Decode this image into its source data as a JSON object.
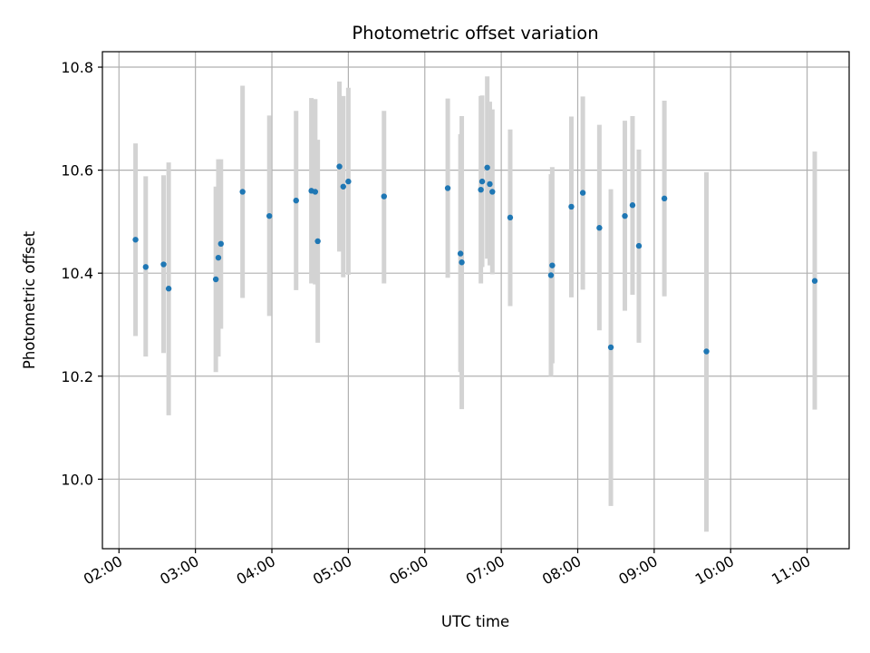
{
  "chart_data": {
    "type": "scatter",
    "title": "Photometric offset variation",
    "xlabel": "UTC time",
    "ylabel": "Photometric offset",
    "x_axis_type": "time",
    "xlim": [
      "01:47",
      "11:33"
    ],
    "ylim": [
      9.865,
      10.83
    ],
    "x_ticks": [
      "02:00",
      "03:00",
      "04:00",
      "05:00",
      "06:00",
      "07:00",
      "08:00",
      "09:00",
      "10:00",
      "11:00"
    ],
    "y_ticks": [
      10.0,
      10.2,
      10.4,
      10.6,
      10.8
    ],
    "y_tick_labels": [
      "10.0",
      "10.2",
      "10.4",
      "10.6",
      "10.8"
    ],
    "grid": true,
    "x_tick_rotation_deg": 30,
    "colors": {
      "point": "#1f77b4",
      "error_bar": "#d3d3d3"
    },
    "points": [
      {
        "t": "02:13",
        "y": 10.465,
        "lo": 10.278,
        "hi": 10.652
      },
      {
        "t": "02:21",
        "y": 10.412,
        "lo": 10.238,
        "hi": 10.588
      },
      {
        "t": "02:35",
        "y": 10.417,
        "lo": 10.245,
        "hi": 10.59
      },
      {
        "t": "02:39",
        "y": 10.37,
        "lo": 10.124,
        "hi": 10.615
      },
      {
        "t": "03:16",
        "y": 10.388,
        "lo": 10.208,
        "hi": 10.568
      },
      {
        "t": "03:18",
        "y": 10.43,
        "lo": 10.238,
        "hi": 10.621
      },
      {
        "t": "03:20",
        "y": 10.457,
        "lo": 10.292,
        "hi": 10.621
      },
      {
        "t": "03:37",
        "y": 10.558,
        "lo": 10.352,
        "hi": 10.764
      },
      {
        "t": "03:58",
        "y": 10.511,
        "lo": 10.317,
        "hi": 10.706
      },
      {
        "t": "04:19",
        "y": 10.541,
        "lo": 10.367,
        "hi": 10.715
      },
      {
        "t": "04:31",
        "y": 10.56,
        "lo": 10.38,
        "hi": 10.74
      },
      {
        "t": "04:34",
        "y": 10.558,
        "lo": 10.378,
        "hi": 10.738
      },
      {
        "t": "04:36",
        "y": 10.462,
        "lo": 10.265,
        "hi": 10.659
      },
      {
        "t": "04:53",
        "y": 10.607,
        "lo": 10.442,
        "hi": 10.772
      },
      {
        "t": "04:56",
        "y": 10.568,
        "lo": 10.392,
        "hi": 10.744
      },
      {
        "t": "05:00",
        "y": 10.578,
        "lo": 10.397,
        "hi": 10.76
      },
      {
        "t": "05:28",
        "y": 10.549,
        "lo": 10.38,
        "hi": 10.715
      },
      {
        "t": "06:18",
        "y": 10.565,
        "lo": 10.391,
        "hi": 10.739
      },
      {
        "t": "06:28",
        "y": 10.438,
        "lo": 10.208,
        "hi": 10.67
      },
      {
        "t": "06:29",
        "y": 10.421,
        "lo": 10.136,
        "hi": 10.705
      },
      {
        "t": "06:44",
        "y": 10.562,
        "lo": 10.38,
        "hi": 10.744
      },
      {
        "t": "06:45",
        "y": 10.578,
        "lo": 10.412,
        "hi": 10.745
      },
      {
        "t": "06:49",
        "y": 10.605,
        "lo": 10.428,
        "hi": 10.782
      },
      {
        "t": "06:51",
        "y": 10.573,
        "lo": 10.415,
        "hi": 10.733
      },
      {
        "t": "06:53",
        "y": 10.558,
        "lo": 10.398,
        "hi": 10.718
      },
      {
        "t": "07:07",
        "y": 10.508,
        "lo": 10.336,
        "hi": 10.679
      },
      {
        "t": "07:39",
        "y": 10.396,
        "lo": 10.2,
        "hi": 10.592
      },
      {
        "t": "07:40",
        "y": 10.415,
        "lo": 10.225,
        "hi": 10.606
      },
      {
        "t": "07:55",
        "y": 10.529,
        "lo": 10.353,
        "hi": 10.704
      },
      {
        "t": "08:04",
        "y": 10.556,
        "lo": 10.368,
        "hi": 10.743
      },
      {
        "t": "08:17",
        "y": 10.488,
        "lo": 10.289,
        "hi": 10.688
      },
      {
        "t": "08:26",
        "y": 10.256,
        "lo": 9.948,
        "hi": 10.563
      },
      {
        "t": "08:37",
        "y": 10.511,
        "lo": 10.327,
        "hi": 10.696
      },
      {
        "t": "08:43",
        "y": 10.532,
        "lo": 10.358,
        "hi": 10.705
      },
      {
        "t": "08:48",
        "y": 10.453,
        "lo": 10.265,
        "hi": 10.64
      },
      {
        "t": "09:08",
        "y": 10.545,
        "lo": 10.355,
        "hi": 10.735
      },
      {
        "t": "09:41",
        "y": 10.248,
        "lo": 9.898,
        "hi": 10.596
      },
      {
        "t": "11:06",
        "y": 10.385,
        "lo": 10.135,
        "hi": 10.636
      }
    ]
  }
}
